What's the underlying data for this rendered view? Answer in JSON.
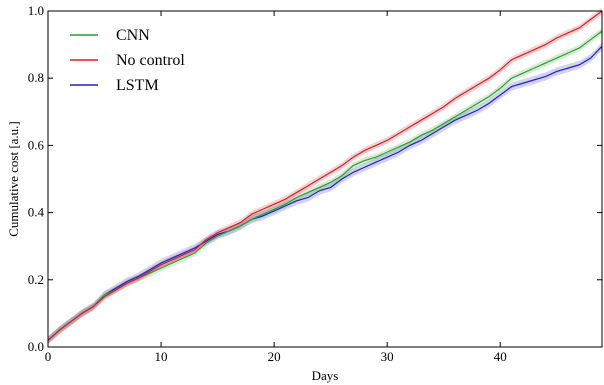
{
  "chart_data": {
    "type": "line",
    "title": "",
    "xlabel": "Days",
    "ylabel": "Cumulative cost [a.u.]",
    "xlim": [
      0,
      49
    ],
    "ylim": [
      0.0,
      1.0
    ],
    "grid": false,
    "legend_position": "top-left",
    "x_ticks": [
      0,
      10,
      20,
      30,
      40
    ],
    "x_tick_labels": [
      "0",
      "10",
      "20",
      "30",
      "40"
    ],
    "y_ticks": [
      0.0,
      0.2,
      0.4,
      0.6,
      0.8,
      1.0
    ],
    "y_tick_labels": [
      "0.0",
      "0.2",
      "0.4",
      "0.6",
      "0.8",
      "1.0"
    ],
    "x": [
      0,
      1,
      2,
      3,
      4,
      5,
      6,
      7,
      8,
      9,
      10,
      11,
      12,
      13,
      14,
      15,
      16,
      17,
      18,
      19,
      20,
      21,
      22,
      23,
      24,
      25,
      26,
      27,
      28,
      29,
      30,
      31,
      32,
      33,
      34,
      35,
      36,
      37,
      38,
      39,
      40,
      41,
      42,
      43,
      44,
      45,
      46,
      47,
      48,
      49
    ],
    "series": [
      {
        "name": "CNN",
        "color": "#2ca02c",
        "values": [
          0.02,
          0.05,
          0.075,
          0.1,
          0.12,
          0.155,
          0.17,
          0.19,
          0.205,
          0.22,
          0.235,
          0.25,
          0.265,
          0.28,
          0.31,
          0.33,
          0.345,
          0.36,
          0.38,
          0.395,
          0.41,
          0.425,
          0.445,
          0.46,
          0.475,
          0.49,
          0.51,
          0.54,
          0.555,
          0.565,
          0.58,
          0.595,
          0.61,
          0.63,
          0.645,
          0.665,
          0.685,
          0.705,
          0.725,
          0.745,
          0.77,
          0.8,
          0.815,
          0.83,
          0.845,
          0.86,
          0.875,
          0.89,
          0.915,
          0.94
        ],
        "band": 0.01
      },
      {
        "name": "No control",
        "color": "#e31a1c",
        "values": [
          0.02,
          0.05,
          0.075,
          0.1,
          0.12,
          0.15,
          0.17,
          0.19,
          0.205,
          0.225,
          0.245,
          0.26,
          0.275,
          0.29,
          0.32,
          0.34,
          0.355,
          0.37,
          0.395,
          0.41,
          0.425,
          0.44,
          0.46,
          0.48,
          0.5,
          0.52,
          0.54,
          0.565,
          0.585,
          0.6,
          0.615,
          0.635,
          0.655,
          0.675,
          0.695,
          0.715,
          0.74,
          0.76,
          0.78,
          0.8,
          0.825,
          0.855,
          0.87,
          0.885,
          0.9,
          0.92,
          0.935,
          0.95,
          0.975,
          1.0
        ],
        "band": 0.01
      },
      {
        "name": "LSTM",
        "color": "#1f1fd6",
        "values": [
          0.02,
          0.05,
          0.075,
          0.1,
          0.12,
          0.155,
          0.175,
          0.195,
          0.21,
          0.23,
          0.25,
          0.265,
          0.28,
          0.295,
          0.315,
          0.335,
          0.345,
          0.36,
          0.38,
          0.39,
          0.405,
          0.42,
          0.435,
          0.445,
          0.465,
          0.475,
          0.5,
          0.52,
          0.535,
          0.55,
          0.565,
          0.58,
          0.6,
          0.615,
          0.635,
          0.655,
          0.675,
          0.69,
          0.705,
          0.725,
          0.75,
          0.775,
          0.785,
          0.795,
          0.805,
          0.82,
          0.83,
          0.84,
          0.86,
          0.895
        ],
        "band": 0.012
      }
    ]
  }
}
